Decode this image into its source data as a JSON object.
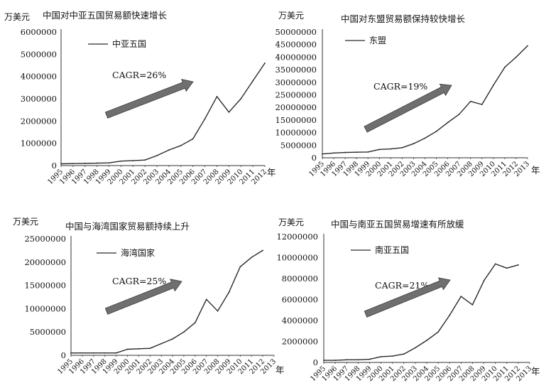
{
  "colors": {
    "line": "#2a2a2a",
    "axis": "#333333",
    "arrow": "#6f6f6f",
    "arrowEdge": "#3c3c3c"
  },
  "chart_data": [
    {
      "type": "line",
      "title": "中国对中亚五国贸易额快速增长",
      "unit": "万美元",
      "year_suffix": "年",
      "cagr_label": "CAGR=26%",
      "categories": [
        "1995",
        "1996",
        "1997",
        "1998",
        "1999",
        "2000",
        "2001",
        "2002",
        "2003",
        "2004",
        "2005",
        "2006",
        "2007",
        "2008",
        "2009",
        "2010",
        "2011",
        "2012"
      ],
      "series": [
        {
          "name": "中亚五国",
          "values": [
            80000,
            90000,
            100000,
            110000,
            120000,
            200000,
            220000,
            250000,
            450000,
            700000,
            900000,
            1200000,
            2100000,
            3100000,
            2400000,
            3000000,
            3800000,
            4600000
          ]
        }
      ],
      "y_ticks": [
        "0",
        "1000000",
        "2000000",
        "3000000",
        "4000000",
        "5000000",
        "6000000"
      ],
      "ylim": [
        0,
        6000000
      ]
    },
    {
      "type": "line",
      "title": "中国对东盟贸易额保持较快增长",
      "unit": "万美元",
      "year_suffix": "年",
      "cagr_label": "CAGR=19%",
      "categories": [
        "1995",
        "1996",
        "1997",
        "1998",
        "1999",
        "2000",
        "2001",
        "2002",
        "2003",
        "2004",
        "2005",
        "2006",
        "2007",
        "2008",
        "2009",
        "2010",
        "2011",
        "2012",
        "2013"
      ],
      "series": [
        {
          "name": "东盟",
          "values": [
            1500000,
            1900000,
            2100000,
            2200000,
            2300000,
            3300000,
            3500000,
            4000000,
            5600000,
            7800000,
            10500000,
            14000000,
            17300000,
            22400000,
            21200000,
            28800000,
            36000000,
            40000000,
            44500000
          ]
        }
      ],
      "y_ticks": [
        "0",
        "5000000",
        "10000000",
        "15000000",
        "20000000",
        "25000000",
        "30000000",
        "35000000",
        "40000000",
        "45000000",
        "50000000"
      ],
      "ylim": [
        0,
        50000000
      ]
    },
    {
      "type": "line",
      "title": "中国与海湾国家贸易额持续上升",
      "unit": "万美元",
      "year_suffix": "年",
      "cagr_label": "CAGR=25%",
      "categories": [
        "1995",
        "1996",
        "1997",
        "1998",
        "1999",
        "2000",
        "2001",
        "2002",
        "2003",
        "2004",
        "2005",
        "2006",
        "2007",
        "2008",
        "2009",
        "2010",
        "2011",
        "2012",
        "2013"
      ],
      "series": [
        {
          "name": "海湾国家",
          "values": [
            500000,
            500000,
            500000,
            500000,
            500000,
            1300000,
            1400000,
            1500000,
            2500000,
            3500000,
            5000000,
            7000000,
            12000000,
            9500000,
            13500000,
            19000000,
            21000000,
            22500000,
            null
          ]
        }
      ],
      "y_ticks": [
        "0",
        "5000000",
        "10000000",
        "15000000",
        "20000000",
        "25000000"
      ],
      "ylim": [
        0,
        25000000
      ]
    },
    {
      "type": "line",
      "title": "中国与南亚五国贸易增速有所放缓",
      "unit": "万美元",
      "year_suffix": "年",
      "cagr_label": "CAGR=21%",
      "categories": [
        "1995",
        "1996",
        "1997",
        "1998",
        "1999",
        "2000",
        "2001",
        "2002",
        "2003",
        "2004",
        "2005",
        "2006",
        "2007",
        "2008",
        "2009",
        "2010",
        "2011",
        "2012",
        "2013"
      ],
      "series": [
        {
          "name": "南亚五国",
          "values": [
            200000,
            200000,
            250000,
            250000,
            300000,
            550000,
            600000,
            800000,
            1400000,
            2100000,
            2900000,
            4500000,
            6300000,
            5500000,
            7800000,
            9400000,
            9000000,
            9300000,
            null
          ]
        }
      ],
      "y_ticks": [
        "0",
        "2000000",
        "4000000",
        "6000000",
        "8000000",
        "10000000",
        "12000000"
      ],
      "ylim": [
        0,
        12000000
      ]
    }
  ]
}
